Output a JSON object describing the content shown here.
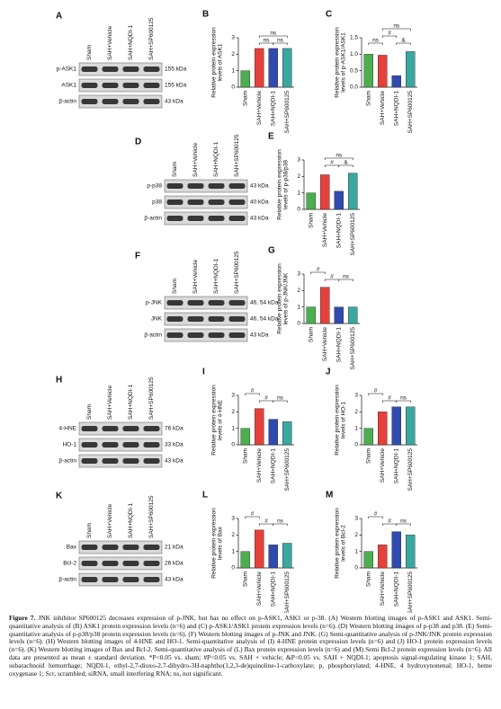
{
  "chart_data": [
    {
      "type": "bar",
      "panel": "B",
      "ylabel": [
        "Relative protein expression",
        "levels of ASK1"
      ],
      "categories": [
        "Sham",
        "SAH+Vehicle",
        "SAH+NQDI-1",
        "SAH+SP600125"
      ],
      "values": [
        1.0,
        2.35,
        2.35,
        2.35
      ],
      "colors": [
        "#4cae4f",
        "#e5403a",
        "#2f4bb0",
        "#3aa7a1"
      ],
      "ylim": [
        0,
        3
      ],
      "yticks": [
        0,
        1,
        2,
        3
      ],
      "annotations": [
        "ns",
        "ns",
        "ns"
      ]
    },
    {
      "type": "bar",
      "panel": "C",
      "ylabel": [
        "Relative protein expression",
        "levels of p-ASK1/ASK1"
      ],
      "categories": [
        "Sham",
        "SAH+Vehicle",
        "SAH+NQDI-1",
        "SAH+SP600125"
      ],
      "values": [
        1.0,
        0.97,
        0.35,
        1.08
      ],
      "colors": [
        "#4cae4f",
        "#e5403a",
        "#2f4bb0",
        "#3aa7a1"
      ],
      "ylim": [
        0,
        1.5
      ],
      "yticks": [
        {
          "value": 0,
          "label": "0.0"
        },
        {
          "value": 0.5,
          "label": "0.5"
        },
        {
          "value": 1,
          "label": "1.0"
        },
        {
          "value": 1.5,
          "label": "1.5"
        }
      ],
      "annotations": [
        "ns",
        "ns",
        "#",
        "&"
      ]
    },
    {
      "type": "bar",
      "panel": "E",
      "ylabel": [
        "Relative protein expression",
        "levels of p-p38/p38"
      ],
      "categories": [
        "Sham",
        "SAH+Vehicle",
        "SAH+NQDI-1",
        "SAH+SP600125"
      ],
      "values": [
        1.0,
        2.1,
        1.1,
        2.2
      ],
      "colors": [
        "#4cae4f",
        "#e5403a",
        "#2f4bb0",
        "#3aa7a1"
      ],
      "ylim": [
        0,
        3
      ],
      "yticks": [
        0,
        1,
        2,
        3
      ],
      "annotations": [
        "ns",
        "#",
        "&"
      ]
    },
    {
      "type": "bar",
      "panel": "G",
      "ylabel": [
        "Relative protein expression",
        "levels of p-JNK/JNK"
      ],
      "categories": [
        "Sham",
        "SAH+Vehicle",
        "SAH+NQDI-1",
        "SAH+SP600125"
      ],
      "values": [
        1.0,
        2.2,
        1.0,
        1.0
      ],
      "colors": [
        "#4cae4f",
        "#e5403a",
        "#2f4bb0",
        "#3aa7a1"
      ],
      "ylim": [
        0,
        3
      ],
      "yticks": [
        0,
        1,
        2,
        3
      ],
      "annotations": [
        "#",
        "#",
        "ns"
      ]
    },
    {
      "type": "bar",
      "panel": "I",
      "ylabel": [
        "Relative protein expression",
        "levels of 4-HNE"
      ],
      "categories": [
        "Sham",
        "SAH+Vehicle",
        "SAH+NQDI-1",
        "SAH+SP600125"
      ],
      "values": [
        1.0,
        2.2,
        1.55,
        1.4
      ],
      "colors": [
        "#4cae4f",
        "#e5403a",
        "#2f4bb0",
        "#3aa7a1"
      ],
      "ylim": [
        0,
        3
      ],
      "yticks": [
        0,
        1,
        2,
        3
      ],
      "annotations": [
        "#",
        "#",
        "ns"
      ]
    },
    {
      "type": "bar",
      "panel": "J",
      "ylabel": [
        "Relative protein expression",
        "levels of HO-1"
      ],
      "categories": [
        "Sham",
        "SAH+Vehicle",
        "SAH+NQDI-1",
        "SAH+SP600125"
      ],
      "values": [
        1.0,
        2.0,
        2.3,
        2.3
      ],
      "colors": [
        "#4cae4f",
        "#e5403a",
        "#2f4bb0",
        "#3aa7a1"
      ],
      "ylim": [
        0,
        3
      ],
      "yticks": [
        0,
        1,
        2,
        3
      ],
      "annotations": [
        "#",
        "#",
        "ns"
      ]
    },
    {
      "type": "bar",
      "panel": "L",
      "ylabel": [
        "Relative protein expression",
        "levels of Bax"
      ],
      "categories": [
        "Sham",
        "SAH+Vehicle",
        "SAH+NQDI-1",
        "SAH+SP600125"
      ],
      "values": [
        1.0,
        2.3,
        1.4,
        1.5
      ],
      "colors": [
        "#4cae4f",
        "#e5403a",
        "#2f4bb0",
        "#3aa7a1"
      ],
      "ylim": [
        0,
        3
      ],
      "yticks": [
        0,
        1,
        2,
        3
      ],
      "annotations": [
        "#",
        "#",
        "ns"
      ]
    },
    {
      "type": "bar",
      "panel": "M",
      "ylabel": [
        "Relative protein expression",
        "levels of Bcl-2"
      ],
      "categories": [
        "Sham",
        "SAH+Vehicle",
        "SAH+NQDI-1",
        "SAH+SP600125"
      ],
      "values": [
        1.0,
        1.4,
        2.2,
        2.0
      ],
      "colors": [
        "#4cae4f",
        "#e5403a",
        "#2f4bb0",
        "#3aa7a1"
      ],
      "ylim": [
        0,
        3
      ],
      "yticks": [
        0,
        1,
        2,
        3
      ],
      "annotations": [
        "#",
        "#",
        "ns"
      ]
    }
  ],
  "blots": [
    {
      "panel": "A",
      "lanes": [
        "Sham",
        "SAH+Vehicle",
        "SAH+NQDI-1",
        "SAH+SP600125"
      ],
      "rows": [
        {
          "label": "p-ASK1",
          "size": "155 kDa"
        },
        {
          "label": "ASK1",
          "size": "155 kDa"
        },
        {
          "label": "β-actin",
          "size": "43 kDa"
        }
      ]
    },
    {
      "panel": "D",
      "lanes": [
        "Sham",
        "SAH+Vehicle",
        "SAH+NQDI-1",
        "SAH+SP600125"
      ],
      "rows": [
        {
          "label": "p-p38",
          "size": "43 kDa"
        },
        {
          "label": "p38",
          "size": "40 kDa"
        },
        {
          "label": "β-actin",
          "size": "43 kDa"
        }
      ]
    },
    {
      "panel": "F",
      "lanes": [
        "Sham",
        "SAH+Vehicle",
        "SAH+NQDI-1",
        "SAH+SP600125"
      ],
      "rows": [
        {
          "label": "p-JNK",
          "size": "46, 54 kDa"
        },
        {
          "label": "JNK",
          "size": "46, 54 kDa"
        },
        {
          "label": "β-actin",
          "size": "43 kDa"
        }
      ]
    },
    {
      "panel": "H",
      "lanes": [
        "Sham",
        "SAH+Vehicle",
        "SAH+NQDI-1",
        "SAH+SP600125"
      ],
      "rows": [
        {
          "label": "4-HNE",
          "size": "76 kDa"
        },
        {
          "label": "HO-1",
          "size": "33 kDa"
        },
        {
          "label": "β-actin",
          "size": "43 kDa"
        }
      ]
    },
    {
      "panel": "K",
      "lanes": [
        "Sham",
        "SAH+Vehicle",
        "SAH+NQDI-1",
        "SAH+SP600125"
      ],
      "rows": [
        {
          "label": "Bax",
          "size": "21 kDa"
        },
        {
          "label": "Bcl-2",
          "size": "26 kDa"
        },
        {
          "label": "β-actin",
          "size": "43 kDa"
        }
      ]
    }
  ],
  "caption": {
    "label": "Figure 7.",
    "text": "JNK inhibitor SP600125 decreases expression of p-JNK, but has no effect on p-ASK1, ASK1 or p-38. (A) Western blotting images of p-ASK1 and ASK1. Semi-quantitative analysis of (B) ASK1 protein expression levels (n=6) and (C) p-ASK1/ASK1 protein expression levels (n=6). (D) Western blotting images of p-p38 and p38. (E) Semi-quantitative analysis of p-p38/p38 protein expression levels (n=6). (F) Western blotting images of p-JNK and JNK. (G) Semi-quantitative analysis of p-JNK/JNK protein expression levels (n=6). (H) Western blotting images of 4-HNE and HO-1. Semi-quantitative analysis of (I) 4-HNE protein expression levels (n=6) and (J) HO-1 protein expression levels (n=6). (K) Western blotting images of Bax and Bcl-2. Semi-quantitative analysis of (L) Bax protein expression levels (n=6) and (M) Semi Bcl-2 protein expression levels (n=6). All data are presented as mean ± standard deviation. *P<0.05 vs. sham; #P<0.05 vs. SAH + vehicle; &P<0.05 vs. SAH + NQDI-1; apoptosis signal-regulating kinase 1; SAH, subarachnoid hemorrhage; NQDI-1, ethyl-2,7-dioxo-2,7-dihydro-3H-naphtho(1,2,3-de)quinoline-1-carboxylate; p, phosphorylated; 4-HNE, 4 hydroxynonenal; HO-1, heme oxygenase 1; Scr, scrambled; siRNA, small interfering RNA; ns, not significant."
  }
}
